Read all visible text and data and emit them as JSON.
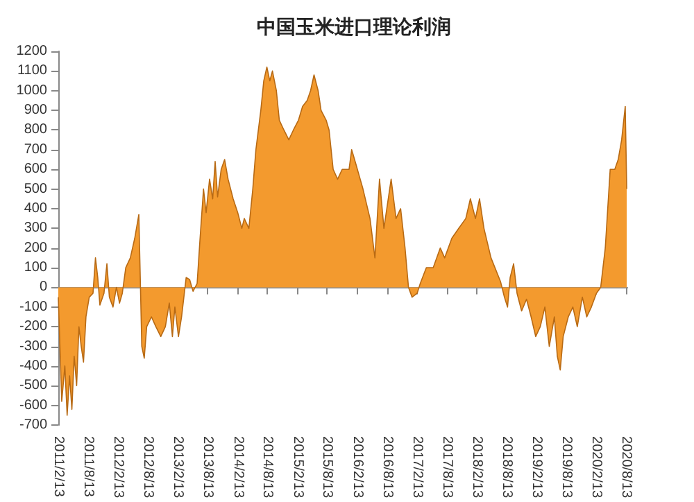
{
  "chart_data": {
    "type": "area",
    "title": "中国玉米进口理论利润",
    "color": "#f39a2e",
    "x": [
      "2011-02-13",
      "2011-03-06",
      "2011-03-25",
      "2011-04-08",
      "2011-04-23",
      "2011-05-07",
      "2011-05-21",
      "2011-06-05",
      "2011-06-19",
      "2011-07-03",
      "2011-07-17",
      "2011-08-01",
      "2011-08-21",
      "2011-09-13",
      "2011-09-28",
      "2011-10-12",
      "2011-10-25",
      "2011-11-19",
      "2011-12-07",
      "2011-12-22",
      "2012-01-13",
      "2012-02-03",
      "2012-02-22",
      "2012-03-10",
      "2012-03-31",
      "2012-04-28",
      "2012-05-25",
      "2012-06-19",
      "2012-07-07",
      "2012-07-22",
      "2012-08-06",
      "2012-09-04",
      "2012-10-01",
      "2012-10-31",
      "2012-11-28",
      "2012-12-22",
      "2013-01-10",
      "2013-01-25",
      "2013-02-16",
      "2013-03-07",
      "2013-04-04",
      "2013-04-25",
      "2013-05-16",
      "2013-06-10",
      "2013-06-28",
      "2013-07-19",
      "2013-08-04",
      "2013-08-25",
      "2013-09-13",
      "2013-09-28",
      "2013-10-13",
      "2013-11-04",
      "2013-11-25",
      "2013-12-16",
      "2014-01-16",
      "2014-02-13",
      "2014-03-10",
      "2014-03-25",
      "2014-04-22",
      "2014-05-16",
      "2014-06-04",
      "2014-07-04",
      "2014-07-22",
      "2014-08-10",
      "2014-08-28",
      "2014-09-13",
      "2014-10-07",
      "2014-10-25",
      "2014-11-22",
      "2014-12-22",
      "2015-01-19",
      "2015-02-19",
      "2015-03-16",
      "2015-04-13",
      "2015-05-04",
      "2015-05-25",
      "2015-06-19",
      "2015-07-07",
      "2015-08-07",
      "2015-08-25",
      "2015-09-19",
      "2015-10-16",
      "2015-11-13",
      "2015-12-25",
      "2016-01-10",
      "2016-02-07",
      "2016-03-19",
      "2016-05-01",
      "2016-05-31",
      "2016-06-28",
      "2016-07-25",
      "2016-09-07",
      "2016-10-07",
      "2016-11-04",
      "2016-12-01",
      "2016-12-22",
      "2017-01-13",
      "2017-02-13",
      "2017-03-04",
      "2017-04-10",
      "2017-05-22",
      "2017-07-04",
      "2017-07-31",
      "2017-09-13",
      "2017-10-25",
      "2017-12-07",
      "2018-01-04",
      "2018-02-04",
      "2018-03-01",
      "2018-03-28",
      "2018-05-10",
      "2018-07-07",
      "2018-07-31",
      "2018-08-19",
      "2018-09-04",
      "2018-09-25",
      "2018-10-16",
      "2018-11-13",
      "2018-12-13",
      "2019-01-10",
      "2019-02-07",
      "2019-03-07",
      "2019-04-04",
      "2019-05-01",
      "2019-06-01",
      "2019-06-19",
      "2019-07-07",
      "2019-07-25",
      "2019-08-25",
      "2019-09-22",
      "2019-10-19",
      "2019-11-19",
      "2019-12-16",
      "2020-01-13",
      "2020-02-13",
      "2020-03-10",
      "2020-04-07",
      "2020-05-07",
      "2020-06-04",
      "2020-06-25",
      "2020-07-16",
      "2020-08-07",
      "2020-08-16"
    ],
    "values": [
      -50,
      -580,
      -400,
      -650,
      -450,
      -620,
      -350,
      -500,
      -200,
      -300,
      -380,
      -150,
      -50,
      -30,
      150,
      50,
      -90,
      -30,
      120,
      -50,
      -100,
      0,
      -80,
      -30,
      100,
      150,
      250,
      370,
      -300,
      -360,
      -200,
      -150,
      -200,
      -250,
      -200,
      -80,
      -250,
      -100,
      -250,
      -150,
      50,
      40,
      -20,
      20,
      250,
      500,
      380,
      550,
      450,
      640,
      460,
      600,
      650,
      550,
      450,
      380,
      300,
      350,
      300,
      500,
      700,
      900,
      1050,
      1120,
      1050,
      1100,
      1000,
      850,
      800,
      750,
      800,
      850,
      920,
      950,
      1000,
      1080,
      1000,
      900,
      850,
      800,
      600,
      550,
      600,
      600,
      700,
      620,
      500,
      350,
      150,
      550,
      300,
      550,
      350,
      400,
      200,
      0,
      -50,
      -30,
      20,
      100,
      100,
      200,
      150,
      250,
      300,
      350,
      450,
      350,
      450,
      300,
      150,
      30,
      -50,
      -100,
      50,
      120,
      -30,
      -120,
      -60,
      -150,
      -250,
      -200,
      -100,
      -300,
      -150,
      -350,
      -420,
      -250,
      -150,
      -100,
      -200,
      -50,
      -150,
      -100,
      -30,
      0,
      200,
      600,
      600,
      650,
      750,
      920,
      500
    ],
    "xlim": [
      "2011-02-13",
      "2020-08-20"
    ],
    "xticks": [
      {
        "value": "2011-02-13",
        "label": "2011/2/13"
      },
      {
        "value": "2011-08-13",
        "label": "2011/8/13"
      },
      {
        "value": "2012-02-13",
        "label": "2012/2/13"
      },
      {
        "value": "2012-08-13",
        "label": "2012/8/13"
      },
      {
        "value": "2013-02-13",
        "label": "2013/2/13"
      },
      {
        "value": "2013-08-13",
        "label": "2013/8/13"
      },
      {
        "value": "2014-02-13",
        "label": "2014/2/13"
      },
      {
        "value": "2014-08-13",
        "label": "2014/8/13"
      },
      {
        "value": "2015-02-13",
        "label": "2015/2/13"
      },
      {
        "value": "2015-08-13",
        "label": "2015/8/13"
      },
      {
        "value": "2016-02-13",
        "label": "2016/2/13"
      },
      {
        "value": "2016-08-13",
        "label": "2016/8/13"
      },
      {
        "value": "2017-02-13",
        "label": "2017/2/13"
      },
      {
        "value": "2017-08-13",
        "label": "2017/8/13"
      },
      {
        "value": "2018-02-13",
        "label": "2018/2/13"
      },
      {
        "value": "2018-08-13",
        "label": "2018/8/13"
      },
      {
        "value": "2019-02-13",
        "label": "2019/2/13"
      },
      {
        "value": "2019-08-13",
        "label": "2019/8/13"
      },
      {
        "value": "2020-02-13",
        "label": "2020/2/13"
      },
      {
        "value": "2020-08-13",
        "label": "2020/8/13"
      }
    ],
    "ylim": [
      -700,
      1200
    ],
    "yticks": [
      -700,
      -600,
      -500,
      -400,
      -300,
      -200,
      -100,
      0,
      100,
      200,
      300,
      400,
      500,
      600,
      700,
      800,
      900,
      1000,
      1100,
      1200
    ]
  }
}
